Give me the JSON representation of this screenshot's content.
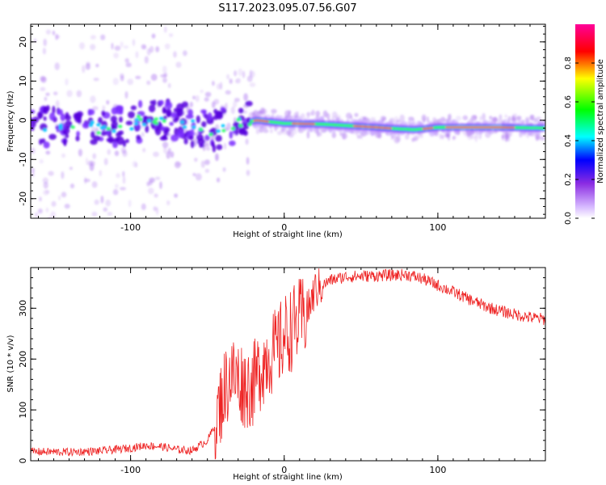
{
  "figure_title": "S117.2023.095.07.56.G07",
  "chart_data": [
    {
      "type": "heatmap",
      "xlabel": "Height of straight line (km)",
      "ylabel": "Frequency (Hz)",
      "xlim": [
        -165,
        170
      ],
      "ylim": [
        -25,
        24.5
      ],
      "xticks": [
        -100,
        0,
        100
      ],
      "yticks": [
        -20,
        -10,
        0,
        10,
        20
      ],
      "colorbar": {
        "label": "Normalized spectral amplitude",
        "range": [
          0,
          1
        ],
        "ticks": [
          "0.0",
          "0.2",
          "0.4",
          "0.6",
          "0.8"
        ],
        "colormap": [
          "#ffffff",
          "#8a2be2",
          "#0000ff",
          "#00ffff",
          "#00ff00",
          "#ffff00",
          "#ff0000",
          "#ff00aa"
        ]
      },
      "trace": [
        {
          "x": -165,
          "y": -1
        },
        {
          "x": -140,
          "y": -2
        },
        {
          "x": -110,
          "y": -2
        },
        {
          "x": -90,
          "y": 0
        },
        {
          "x": -70,
          "y": 0
        },
        {
          "x": -50,
          "y": -3
        },
        {
          "x": -30,
          "y": -1
        },
        {
          "x": -18,
          "y": 0
        },
        {
          "x": 0,
          "y": -0.8
        },
        {
          "x": 25,
          "y": -1
        },
        {
          "x": 60,
          "y": -1.8
        },
        {
          "x": 75,
          "y": -2.2
        },
        {
          "x": 85,
          "y": -2.4
        },
        {
          "x": 100,
          "y": -1.8
        },
        {
          "x": 140,
          "y": -1.8
        },
        {
          "x": 170,
          "y": -2
        }
      ]
    },
    {
      "type": "line",
      "xlabel": "Height of straight line (km)",
      "ylabel": "SNR (10 * v/v)",
      "xlim": [
        -165,
        170
      ],
      "ylim": [
        0,
        380
      ],
      "xticks": [
        -100,
        0,
        100
      ],
      "yticks": [
        0,
        100,
        200,
        300
      ],
      "color": "#ee2222",
      "series": [
        {
          "x": [
            -165,
            -140,
            -120,
            -100,
            -90,
            -80,
            -70,
            -60,
            -50,
            -45,
            -40,
            -35,
            -30,
            -25,
            -20,
            -15,
            -10,
            -5,
            0,
            5,
            10,
            15,
            20,
            30,
            40,
            50,
            60,
            70,
            80,
            90,
            100,
            110,
            120,
            130,
            140,
            150,
            160,
            170
          ],
          "y": [
            18,
            17,
            19,
            25,
            30,
            28,
            22,
            20,
            40,
            70,
            130,
            170,
            160,
            145,
            150,
            185,
            210,
            215,
            245,
            260,
            275,
            290,
            335,
            355,
            362,
            363,
            364,
            365,
            366,
            358,
            345,
            332,
            318,
            305,
            295,
            288,
            282,
            278
          ]
        }
      ]
    }
  ]
}
